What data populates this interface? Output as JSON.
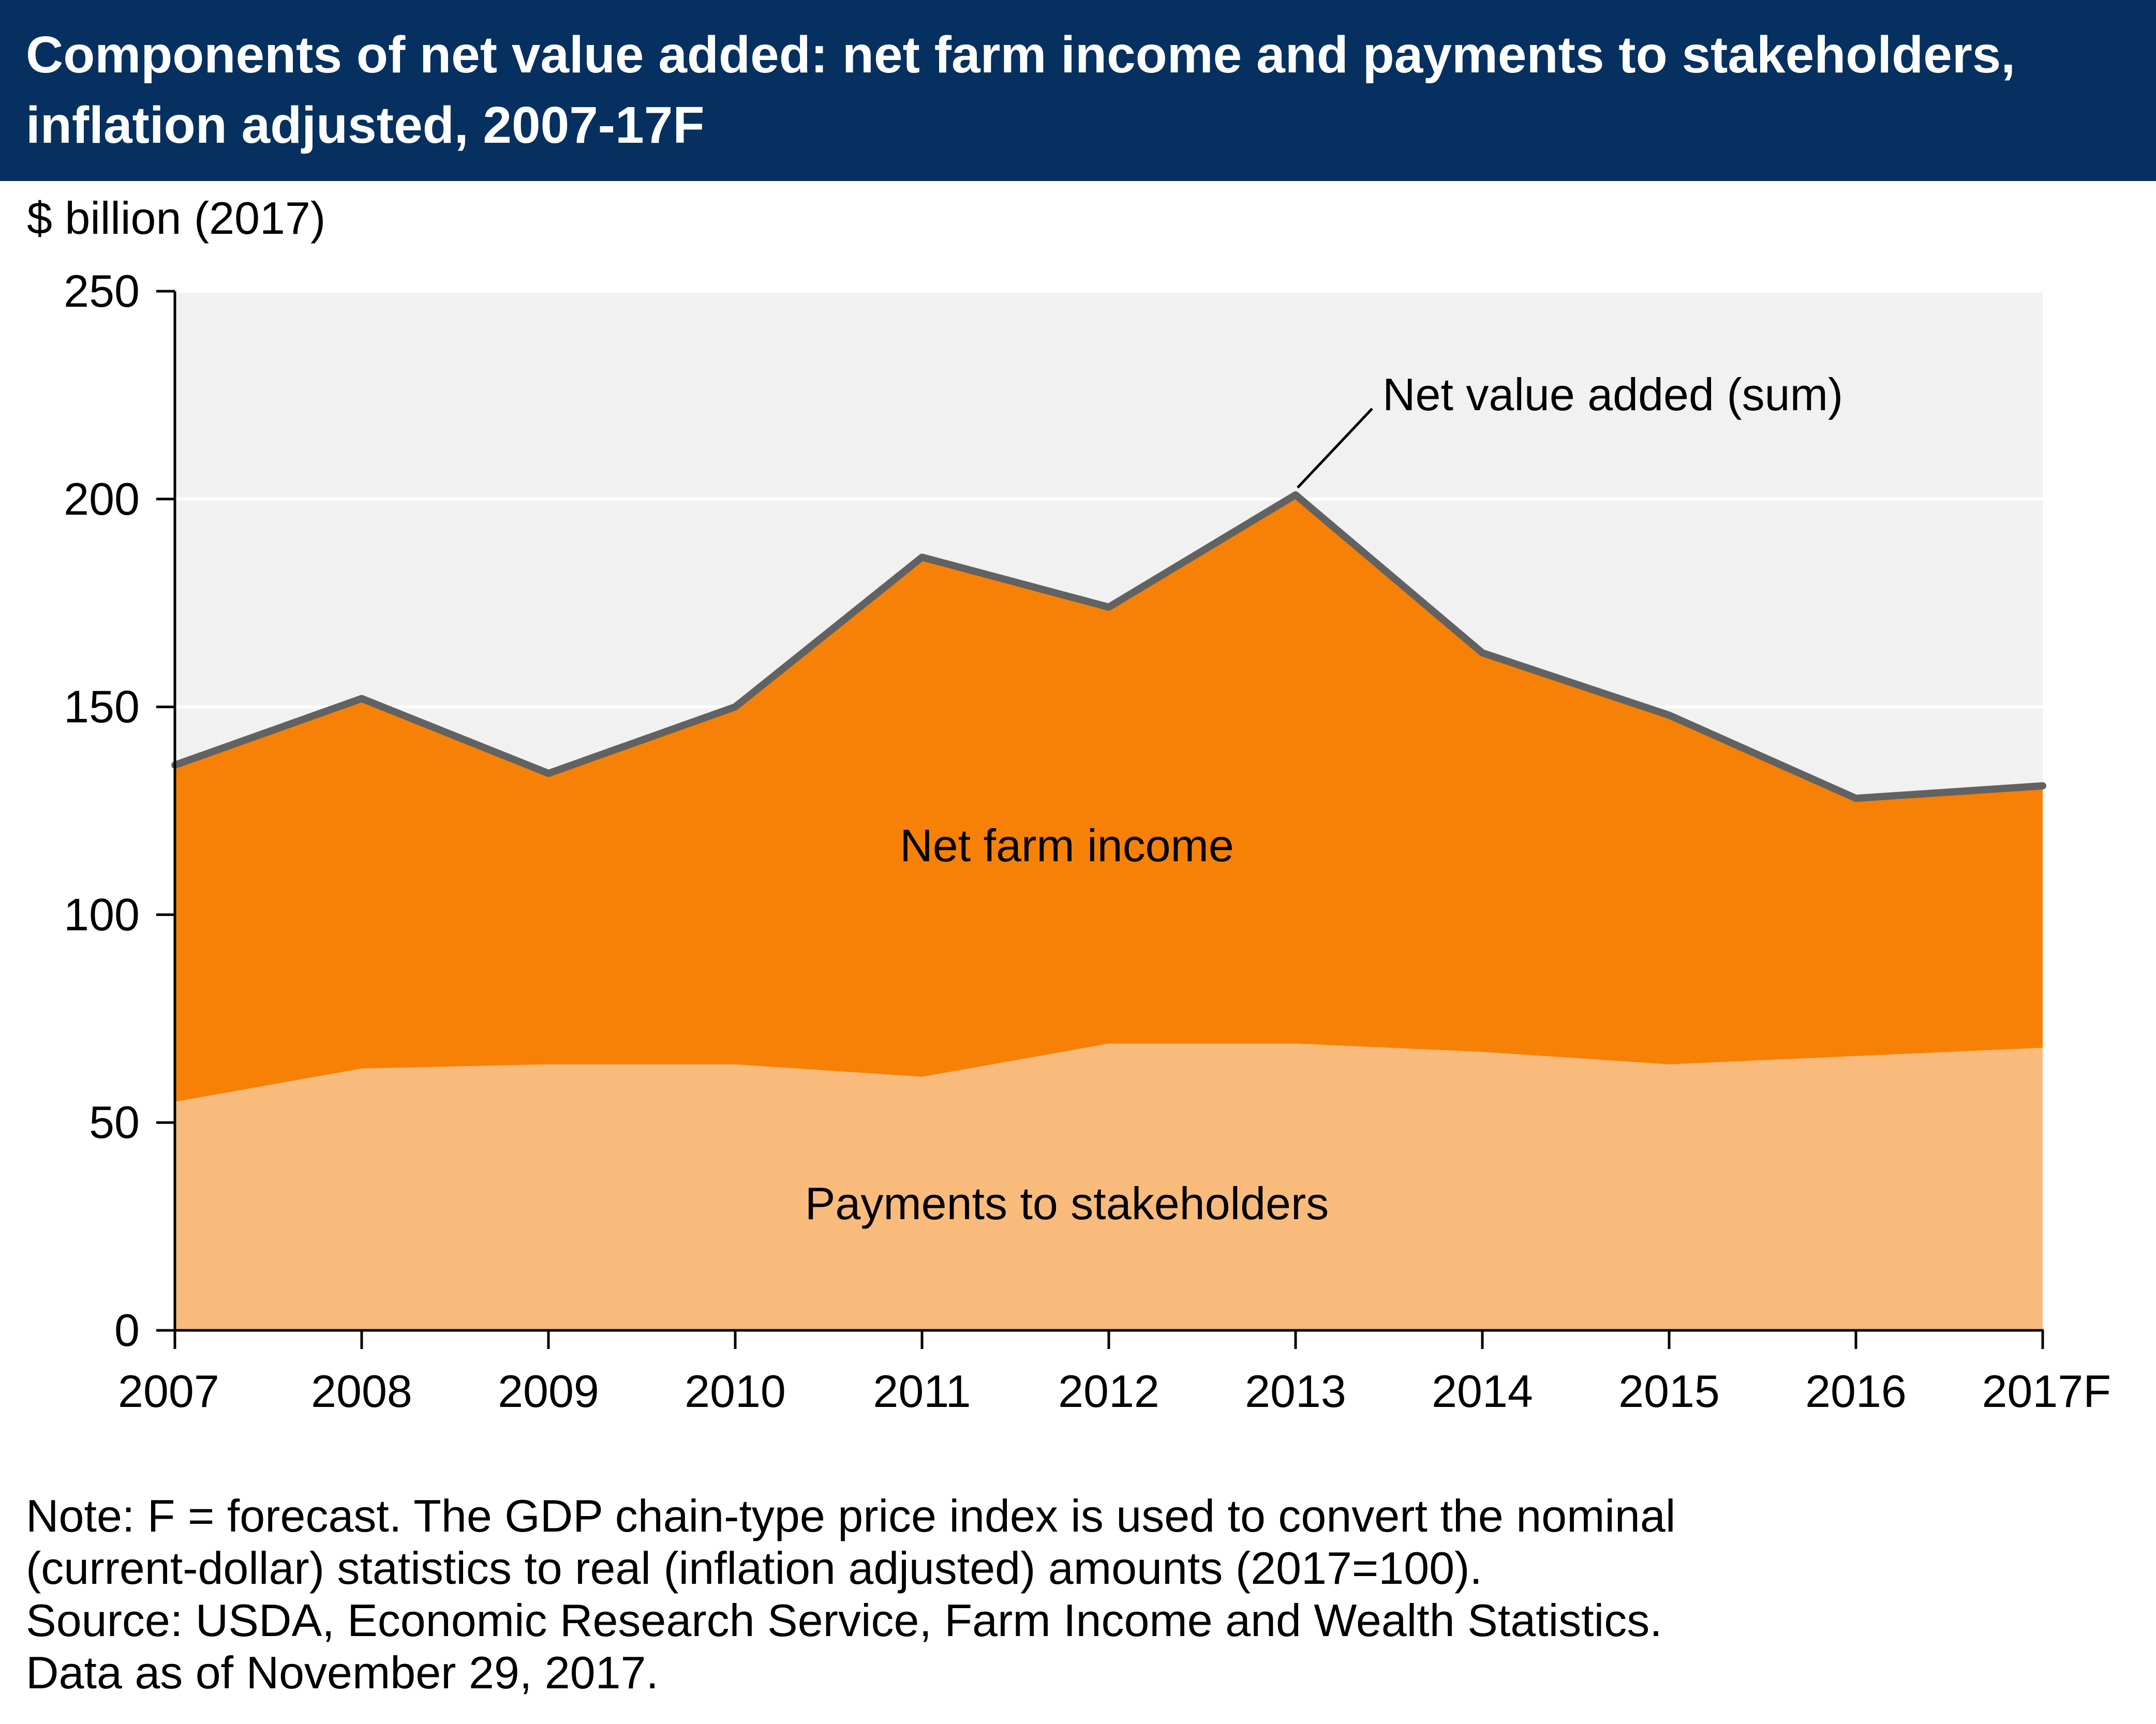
{
  "title": "Components of net value added: net farm income and payments to stakeholders, inflation adjusted, 2007-17F",
  "colors": {
    "header_bg": "#05305f",
    "plot_bg": "#f1f1f1",
    "payments_fill": "#f9bb7c",
    "net_farm_income_fill": "#f68106",
    "sum_line": "#626262"
  },
  "chart_data": {
    "type": "area",
    "stacked": true,
    "ylabel": "$ billion (2017)",
    "ylim": [
      0,
      250
    ],
    "yticks": [
      "0",
      "50",
      "100",
      "150",
      "200",
      "250"
    ],
    "grid": true,
    "categories": [
      "2007",
      "2008",
      "2009",
      "2010",
      "2011",
      "2012",
      "2013",
      "2014",
      "2015",
      "2016",
      "2017F"
    ],
    "series": [
      {
        "name": "Payments to stakeholders",
        "values": [
          55,
          63,
          64,
          64,
          61,
          69,
          69,
          67,
          64,
          66,
          68
        ]
      },
      {
        "name": "Net farm income",
        "values": [
          81,
          89,
          70,
          86,
          125,
          105,
          132,
          96,
          84,
          62,
          63
        ]
      }
    ],
    "sum_line": {
      "name": "Net value added (sum)",
      "values": [
        136,
        152,
        134,
        150,
        186,
        174,
        201,
        163,
        148,
        128,
        131
      ]
    },
    "annotations": [
      "Net value added (sum)",
      "Net farm income",
      "Payments to stakeholders"
    ]
  },
  "note": {
    "line1": "Note: F = forecast. The GDP chain-type price index is used to convert the nominal",
    "line2": "(current-dollar) statistics to real (inflation adjusted) amounts (2017=100).",
    "line3": "Source: USDA, Economic Research Service, Farm Income and Wealth Statistics.",
    "line4": "Data as of November 29, 2017."
  }
}
